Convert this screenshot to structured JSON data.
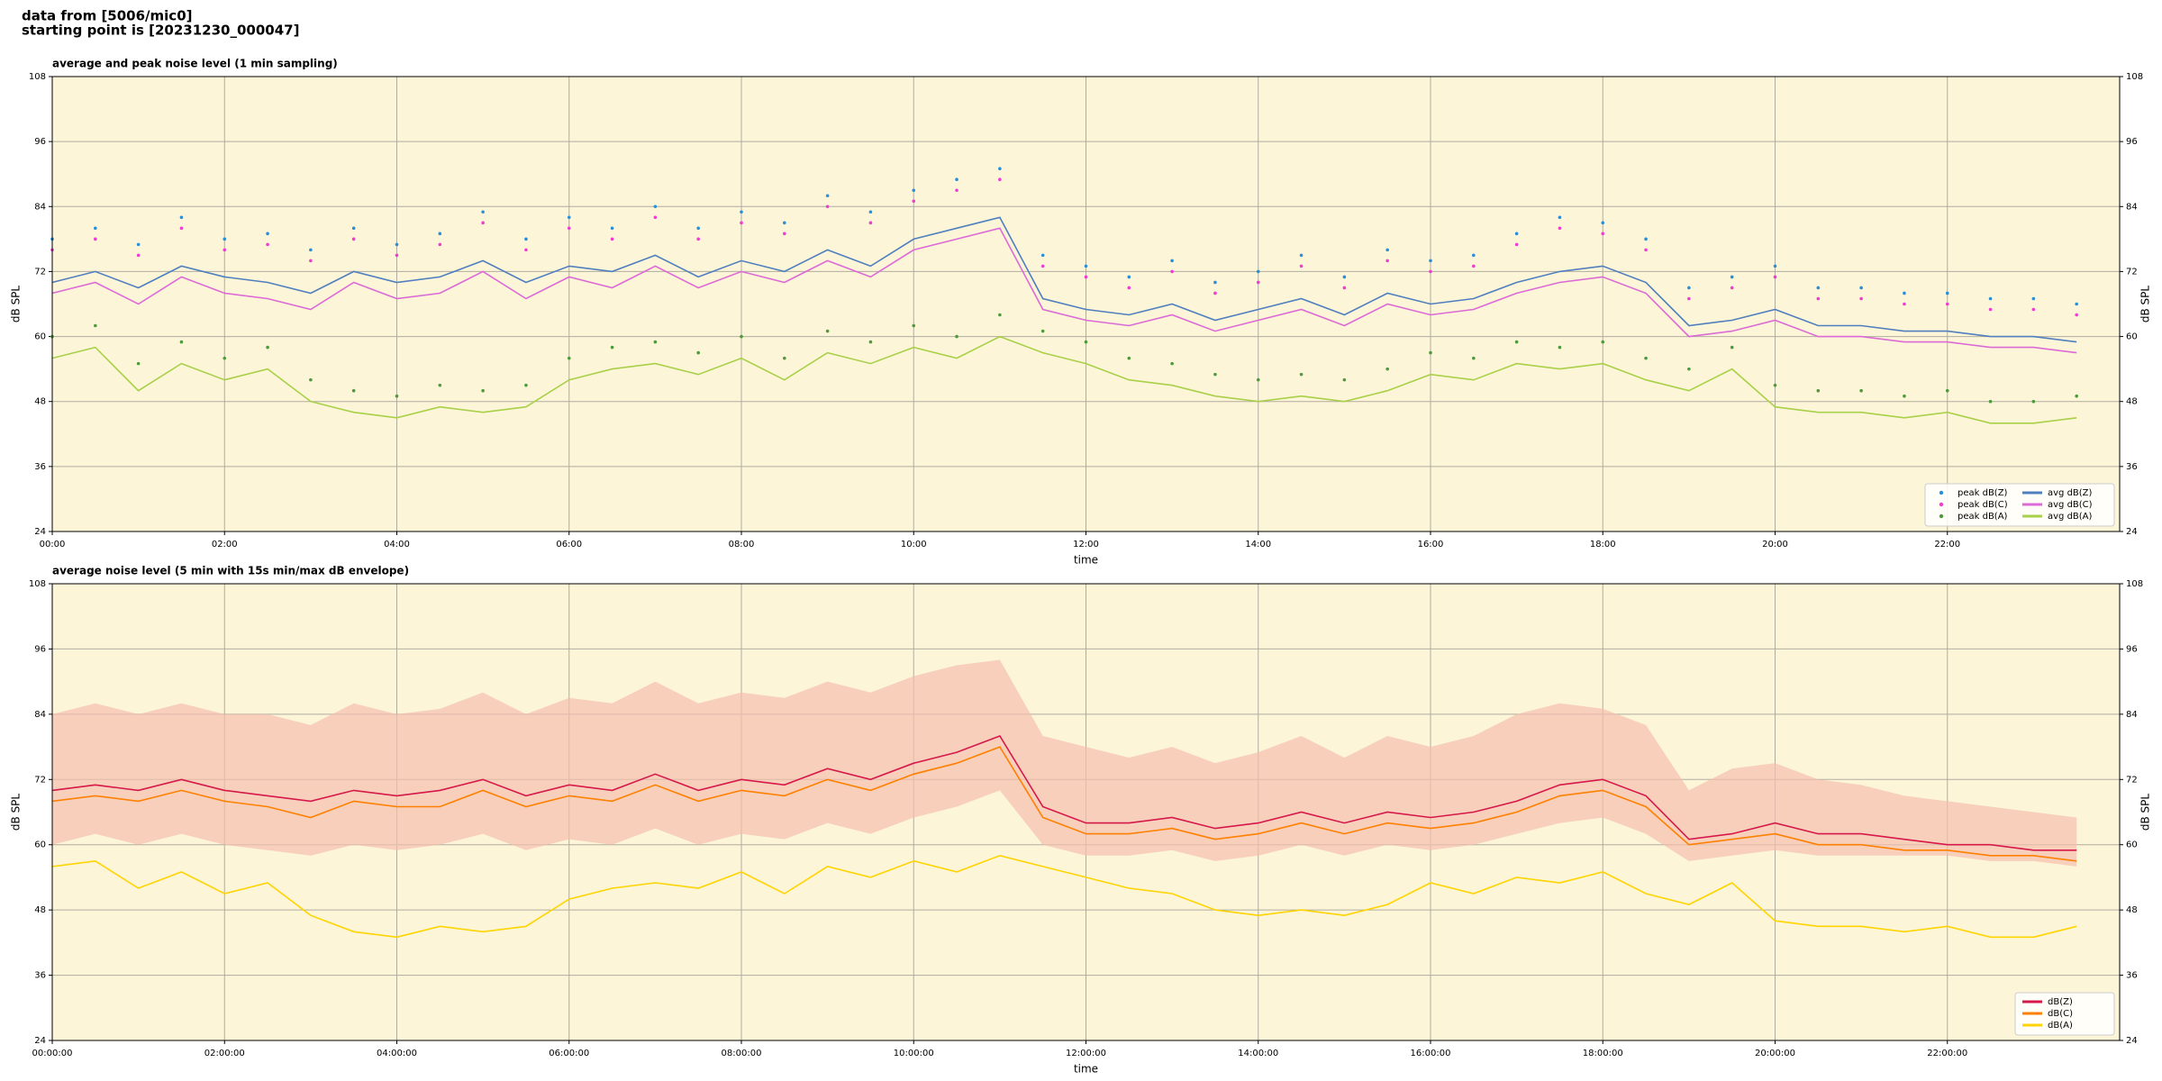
{
  "header": {
    "line1": "data from [5006/mic0]",
    "line2": "starting point is [20231230_000047]"
  },
  "chart_data": [
    {
      "type": "line",
      "title": "average and peak noise level (1 min sampling)",
      "x_label": "time",
      "y_label": "dB SPL",
      "x": [
        "00:00",
        "00:30",
        "01:00",
        "01:30",
        "02:00",
        "02:30",
        "03:00",
        "03:30",
        "04:00",
        "04:30",
        "05:00",
        "05:30",
        "06:00",
        "06:30",
        "07:00",
        "07:30",
        "08:00",
        "08:30",
        "09:00",
        "09:30",
        "10:00",
        "10:30",
        "11:00",
        "11:30",
        "12:00",
        "12:30",
        "13:00",
        "13:30",
        "14:00",
        "14:30",
        "15:00",
        "15:30",
        "16:00",
        "16:30",
        "17:00",
        "17:30",
        "18:00",
        "18:30",
        "19:00",
        "19:30",
        "20:00",
        "20:30",
        "21:00",
        "21:30",
        "22:00",
        "22:30",
        "23:00",
        "23:30"
      ],
      "xlim": [
        "00:00",
        "24:00"
      ],
      "xticks": [
        "00:00",
        "02:00",
        "04:00",
        "06:00",
        "08:00",
        "10:00",
        "12:00",
        "14:00",
        "16:00",
        "18:00",
        "20:00",
        "22:00"
      ],
      "ylim": [
        24,
        108
      ],
      "yticks": [
        24,
        36,
        48,
        60,
        72,
        84,
        96,
        108
      ],
      "grid": true,
      "legend": "lower right",
      "legend_columns": 2,
      "series": [
        {
          "name": "peak dB(Z)",
          "style": "scatter",
          "color": "#2a8fd8",
          "values": [
            78,
            80,
            77,
            82,
            78,
            79,
            76,
            80,
            77,
            79,
            83,
            78,
            82,
            80,
            84,
            80,
            83,
            81,
            86,
            83,
            87,
            89,
            91,
            75,
            73,
            71,
            74,
            70,
            72,
            75,
            71,
            76,
            74,
            75,
            79,
            82,
            81,
            78,
            69,
            71,
            73,
            69,
            69,
            68,
            68,
            67,
            67,
            66
          ]
        },
        {
          "name": "peak dB(C)",
          "style": "scatter",
          "color": "#f03cd0",
          "values": [
            76,
            78,
            75,
            80,
            76,
            77,
            74,
            78,
            75,
            77,
            81,
            76,
            80,
            78,
            82,
            78,
            81,
            79,
            84,
            81,
            85,
            87,
            89,
            73,
            71,
            69,
            72,
            68,
            70,
            73,
            69,
            74,
            72,
            73,
            77,
            80,
            79,
            76,
            67,
            69,
            71,
            67,
            67,
            66,
            66,
            65,
            65,
            64
          ]
        },
        {
          "name": "peak dB(A)",
          "style": "scatter",
          "color": "#4f9a3c",
          "values": [
            60,
            62,
            55,
            59,
            56,
            58,
            52,
            50,
            49,
            51,
            50,
            51,
            56,
            58,
            59,
            57,
            60,
            56,
            61,
            59,
            62,
            60,
            64,
            61,
            59,
            56,
            55,
            53,
            52,
            53,
            52,
            54,
            57,
            56,
            59,
            58,
            59,
            56,
            54,
            58,
            51,
            50,
            50,
            49,
            50,
            48,
            48,
            49
          ]
        },
        {
          "name": "avg dB(Z)",
          "style": "line",
          "color": "#4f7fbf",
          "values": [
            70,
            72,
            69,
            73,
            71,
            70,
            68,
            72,
            70,
            71,
            74,
            70,
            73,
            72,
            75,
            71,
            74,
            72,
            76,
            73,
            78,
            80,
            82,
            67,
            65,
            64,
            66,
            63,
            65,
            67,
            64,
            68,
            66,
            67,
            70,
            72,
            73,
            70,
            62,
            63,
            65,
            62,
            62,
            61,
            61,
            60,
            60,
            59
          ]
        },
        {
          "name": "avg dB(C)",
          "style": "line",
          "color": "#dc6ad6",
          "values": [
            68,
            70,
            66,
            71,
            68,
            67,
            65,
            70,
            67,
            68,
            72,
            67,
            71,
            69,
            73,
            69,
            72,
            70,
            74,
            71,
            76,
            78,
            80,
            65,
            63,
            62,
            64,
            61,
            63,
            65,
            62,
            66,
            64,
            65,
            68,
            70,
            71,
            68,
            60,
            61,
            63,
            60,
            60,
            59,
            59,
            58,
            58,
            57
          ]
        },
        {
          "name": "avg dB(A)",
          "style": "line",
          "color": "#a8d048",
          "values": [
            56,
            58,
            50,
            55,
            52,
            54,
            48,
            46,
            45,
            47,
            46,
            47,
            52,
            54,
            55,
            53,
            56,
            52,
            57,
            55,
            58,
            56,
            60,
            57,
            55,
            52,
            51,
            49,
            48,
            49,
            48,
            50,
            53,
            52,
            55,
            54,
            55,
            52,
            50,
            54,
            47,
            46,
            46,
            45,
            46,
            44,
            44,
            45
          ]
        }
      ]
    },
    {
      "type": "line",
      "title": "average noise level (5 min with 15s min/max dB envelope)",
      "x_label": "time",
      "y_label": "dB SPL",
      "x": [
        "00:00:00",
        "00:30:00",
        "01:00:00",
        "01:30:00",
        "02:00:00",
        "02:30:00",
        "03:00:00",
        "03:30:00",
        "04:00:00",
        "04:30:00",
        "05:00:00",
        "05:30:00",
        "06:00:00",
        "06:30:00",
        "07:00:00",
        "07:30:00",
        "08:00:00",
        "08:30:00",
        "09:00:00",
        "09:30:00",
        "10:00:00",
        "10:30:00",
        "11:00:00",
        "11:30:00",
        "12:00:00",
        "12:30:00",
        "13:00:00",
        "13:30:00",
        "14:00:00",
        "14:30:00",
        "15:00:00",
        "15:30:00",
        "16:00:00",
        "16:30:00",
        "17:00:00",
        "17:30:00",
        "18:00:00",
        "18:30:00",
        "19:00:00",
        "19:30:00",
        "20:00:00",
        "20:30:00",
        "21:00:00",
        "21:30:00",
        "22:00:00",
        "22:30:00",
        "23:00:00",
        "23:30:00"
      ],
      "xlim": [
        "00:00:00",
        "24:00:00"
      ],
      "xticks": [
        "00:00:00",
        "02:00:00",
        "04:00:00",
        "06:00:00",
        "08:00:00",
        "10:00:00",
        "12:00:00",
        "14:00:00",
        "16:00:00",
        "18:00:00",
        "20:00:00",
        "22:00:00"
      ],
      "ylim": [
        24,
        108
      ],
      "yticks": [
        24,
        36,
        48,
        60,
        72,
        84,
        96,
        108
      ],
      "grid": true,
      "legend": "lower right",
      "legend_columns": 1,
      "envelope": {
        "color": "#f4bfae",
        "low": [
          60,
          62,
          60,
          62,
          60,
          59,
          58,
          60,
          59,
          60,
          62,
          59,
          61,
          60,
          63,
          60,
          62,
          61,
          64,
          62,
          65,
          67,
          70,
          60,
          58,
          58,
          59,
          57,
          58,
          60,
          58,
          60,
          59,
          60,
          62,
          64,
          65,
          62,
          57,
          58,
          59,
          58,
          58,
          58,
          58,
          57,
          57,
          56
        ],
        "high": [
          84,
          86,
          84,
          86,
          84,
          84,
          82,
          86,
          84,
          85,
          88,
          84,
          87,
          86,
          90,
          86,
          88,
          87,
          90,
          88,
          91,
          93,
          94,
          80,
          78,
          76,
          78,
          75,
          77,
          80,
          76,
          80,
          78,
          80,
          84,
          86,
          85,
          82,
          70,
          74,
          75,
          72,
          71,
          69,
          68,
          67,
          66,
          65
        ]
      },
      "series": [
        {
          "name": "dB(Z)",
          "style": "line",
          "color": "#d6184a",
          "values": [
            70,
            71,
            70,
            72,
            70,
            69,
            68,
            70,
            69,
            70,
            72,
            69,
            71,
            70,
            73,
            70,
            72,
            71,
            74,
            72,
            75,
            77,
            80,
            67,
            64,
            64,
            65,
            63,
            64,
            66,
            64,
            66,
            65,
            66,
            68,
            71,
            72,
            69,
            61,
            62,
            64,
            62,
            62,
            61,
            60,
            60,
            59,
            59
          ]
        },
        {
          "name": "dB(C)",
          "style": "line",
          "color": "#ff8000",
          "values": [
            68,
            69,
            68,
            70,
            68,
            67,
            65,
            68,
            67,
            67,
            70,
            67,
            69,
            68,
            71,
            68,
            70,
            69,
            72,
            70,
            73,
            75,
            78,
            65,
            62,
            62,
            63,
            61,
            62,
            64,
            62,
            64,
            63,
            64,
            66,
            69,
            70,
            67,
            60,
            61,
            62,
            60,
            60,
            59,
            59,
            58,
            58,
            57
          ]
        },
        {
          "name": "dB(A)",
          "style": "line",
          "color": "#ffd400",
          "values": [
            56,
            57,
            52,
            55,
            51,
            53,
            47,
            44,
            43,
            45,
            44,
            45,
            50,
            52,
            53,
            52,
            55,
            51,
            56,
            54,
            57,
            55,
            58,
            56,
            54,
            52,
            51,
            48,
            47,
            48,
            47,
            49,
            53,
            51,
            54,
            53,
            55,
            51,
            49,
            53,
            46,
            45,
            45,
            44,
            45,
            43,
            43,
            45
          ]
        }
      ]
    }
  ]
}
